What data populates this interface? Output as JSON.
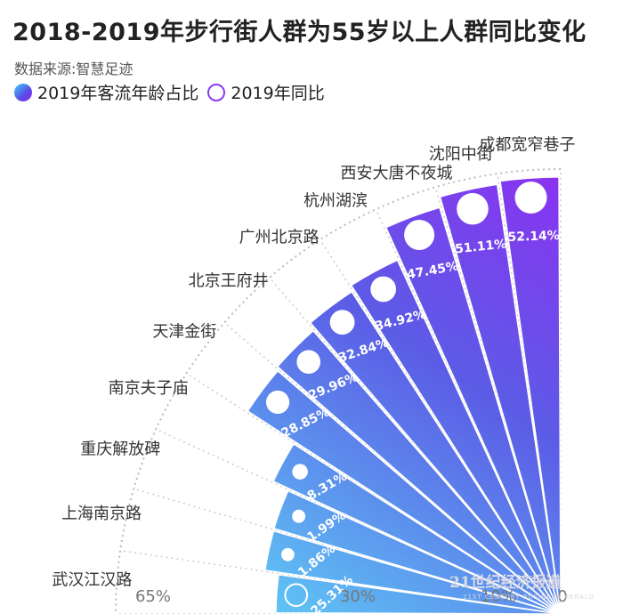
{
  "title": "2018-2019年步行街人群为55岁以上人群同比变化",
  "source": "数据来源:智慧足迹",
  "legend": {
    "fill_label": "2019年客流年龄占比",
    "ring_label": "2019年同比"
  },
  "watermark": {
    "main": "21世纪经济报道",
    "sub": "21ST CENTURY BUSINESS HERALD"
  },
  "chart_data": {
    "type": "radial-bar",
    "title": "2018-2019年步行街人群为55岁以上人群同比变化",
    "categories": [
      "武汉江汉路",
      "上海南京路",
      "重庆解放碑",
      "南京夫子庙",
      "天津金街",
      "北京王府井",
      "广州北京路",
      "杭州湖滨",
      "西安大唐不夜城",
      "沈阳中街",
      "成都宽窄巷子"
    ],
    "series": [
      {
        "name": "2019年同比",
        "values": [
          -25.31,
          1.86,
          1.99,
          8.31,
          28.85,
          29.96,
          32.84,
          34.92,
          47.45,
          51.11,
          52.14
        ],
        "labels": [
          "-25.31%",
          "1.86%",
          "1.99%",
          "8.31%",
          "28.85%",
          "29.96%",
          "32.84%",
          "34.92%",
          "47.45%",
          "51.11%",
          "52.14%"
        ]
      }
    ],
    "axis": {
      "tick_labels": [
        "65%",
        "30%",
        "10%",
        "0"
      ],
      "ticks": [
        65,
        30,
        10,
        0
      ]
    },
    "colors": {
      "start": "#5ec4f4",
      "mid": "#5b5ce6",
      "end": "#8e2ff2"
    }
  }
}
